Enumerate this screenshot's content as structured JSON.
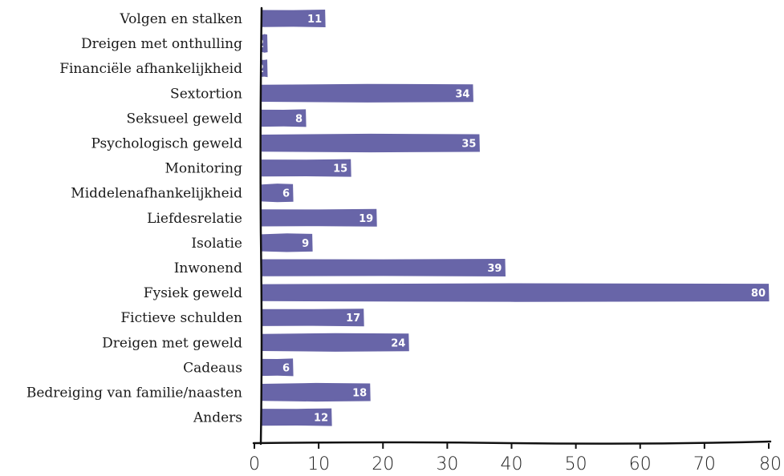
{
  "chart_data": {
    "type": "bar",
    "orientation": "horizontal",
    "categories": [
      "Volgen en stalken",
      "Dreigen met onthulling",
      "Financiële afhankelijkheid",
      "Sextortion",
      "Seksueel geweld",
      "Psychologisch geweld",
      "Monitoring",
      "Middelenafhankelijkheid",
      "Liefdesrelatie",
      "Isolatie",
      "Inwonend",
      "Fysiek geweld",
      "Fictieve schulden",
      "Dreigen met geweld",
      "Cadeaus",
      "Bedreiging van familie/naasten",
      "Anders"
    ],
    "values": [
      11,
      2,
      2,
      34,
      8,
      35,
      15,
      6,
      19,
      9,
      39,
      80,
      17,
      24,
      6,
      18,
      12
    ],
    "xticks": [
      0,
      10,
      20,
      30,
      40,
      50,
      60,
      70,
      80
    ],
    "xlim": [
      0,
      80
    ],
    "title": "",
    "xlabel": "",
    "ylabel": "",
    "grid": false,
    "legend": "none",
    "bar_color": "#6865a8",
    "value_label_color": "#ffffff",
    "axis_color": "#111111"
  }
}
